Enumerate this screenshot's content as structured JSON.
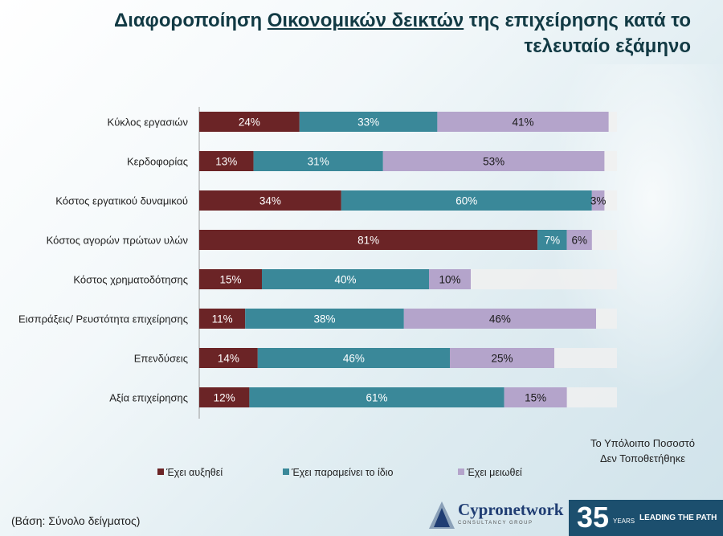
{
  "title_prefix": "Διαφοροποίηση ",
  "title_underlined": "Οικονομικών δεικτών",
  "title_suffix": " της επιχείρησης κατά το τελευταίο εξάμηνο",
  "note_line1": "Το Υπόλοιπο Ποσοστό",
  "note_line2": "Δεν Τοποθετήθηκε",
  "basis": "(Βάση: Σύνολο δείγματος)",
  "logo": {
    "name": "Cypronetwork",
    "subtitle": "CONSULTANCY GROUP"
  },
  "badge": {
    "number": "35",
    "years": "YEARS",
    "slogan": "LEADING THE PATH"
  },
  "colors": {
    "increased": "#6b2426",
    "same": "#3a8899",
    "decreased": "#b4a4cb",
    "remainder": "#f0f0f0"
  },
  "chart_data": {
    "type": "bar",
    "orientation": "horizontal",
    "stacked": true,
    "xlim": [
      0,
      100
    ],
    "categories": [
      "Κύκλος εργασιών",
      "Κερδοφορίας",
      "Κόστος εργατικού δυναμικού",
      "Κόστος αγορών πρώτων υλών",
      "Κόστος χρηματοδότησης",
      "Εισπράξεις/ Ρευστότητα επιχείρησης",
      "Επενδύσεις",
      "Αξία επιχείρησης"
    ],
    "series": [
      {
        "name": "Έχει αυξηθεί",
        "values": [
          24,
          13,
          34,
          81,
          15,
          11,
          14,
          12
        ]
      },
      {
        "name": "Έχει παραμείνει το ίδιο",
        "values": [
          33,
          31,
          60,
          7,
          40,
          38,
          46,
          61
        ]
      },
      {
        "name": "Έχει μειωθεί",
        "values": [
          41,
          53,
          3,
          6,
          10,
          46,
          25,
          15
        ]
      }
    ],
    "value_labels": [
      [
        "24%",
        "33%",
        "41%"
      ],
      [
        "13%",
        "31%",
        "53%"
      ],
      [
        "34%",
        "60%",
        "3%"
      ],
      [
        "81%",
        "7%",
        "6%"
      ],
      [
        "15%",
        "40%",
        "10%"
      ],
      [
        "11%",
        "38%",
        "46%"
      ],
      [
        "14%",
        "46%",
        "25%"
      ],
      [
        "12%",
        "61%",
        "15%"
      ]
    ],
    "legend_position": "bottom"
  }
}
